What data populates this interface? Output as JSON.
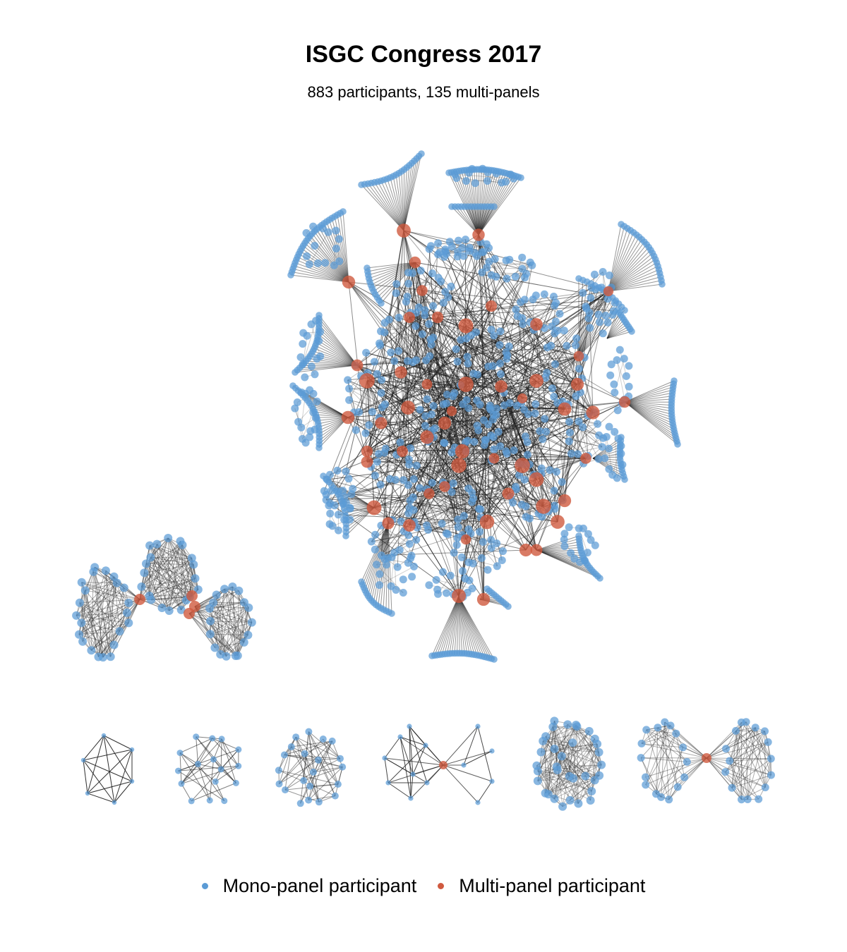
{
  "title": "ISGC Congress 2017",
  "subtitle": "883 participants, 135 multi-panels",
  "legend": [
    {
      "label": "Mono-panel participant",
      "color": "#5b9bd5",
      "icon": "blue-dot-icon"
    },
    {
      "label": "Multi-panel participant",
      "color": "#d05a3f",
      "icon": "red-dot-icon"
    }
  ],
  "colors": {
    "mono": "#5b9bd5",
    "multi": "#d05a3f",
    "edge": "#1a1a1a"
  }
}
